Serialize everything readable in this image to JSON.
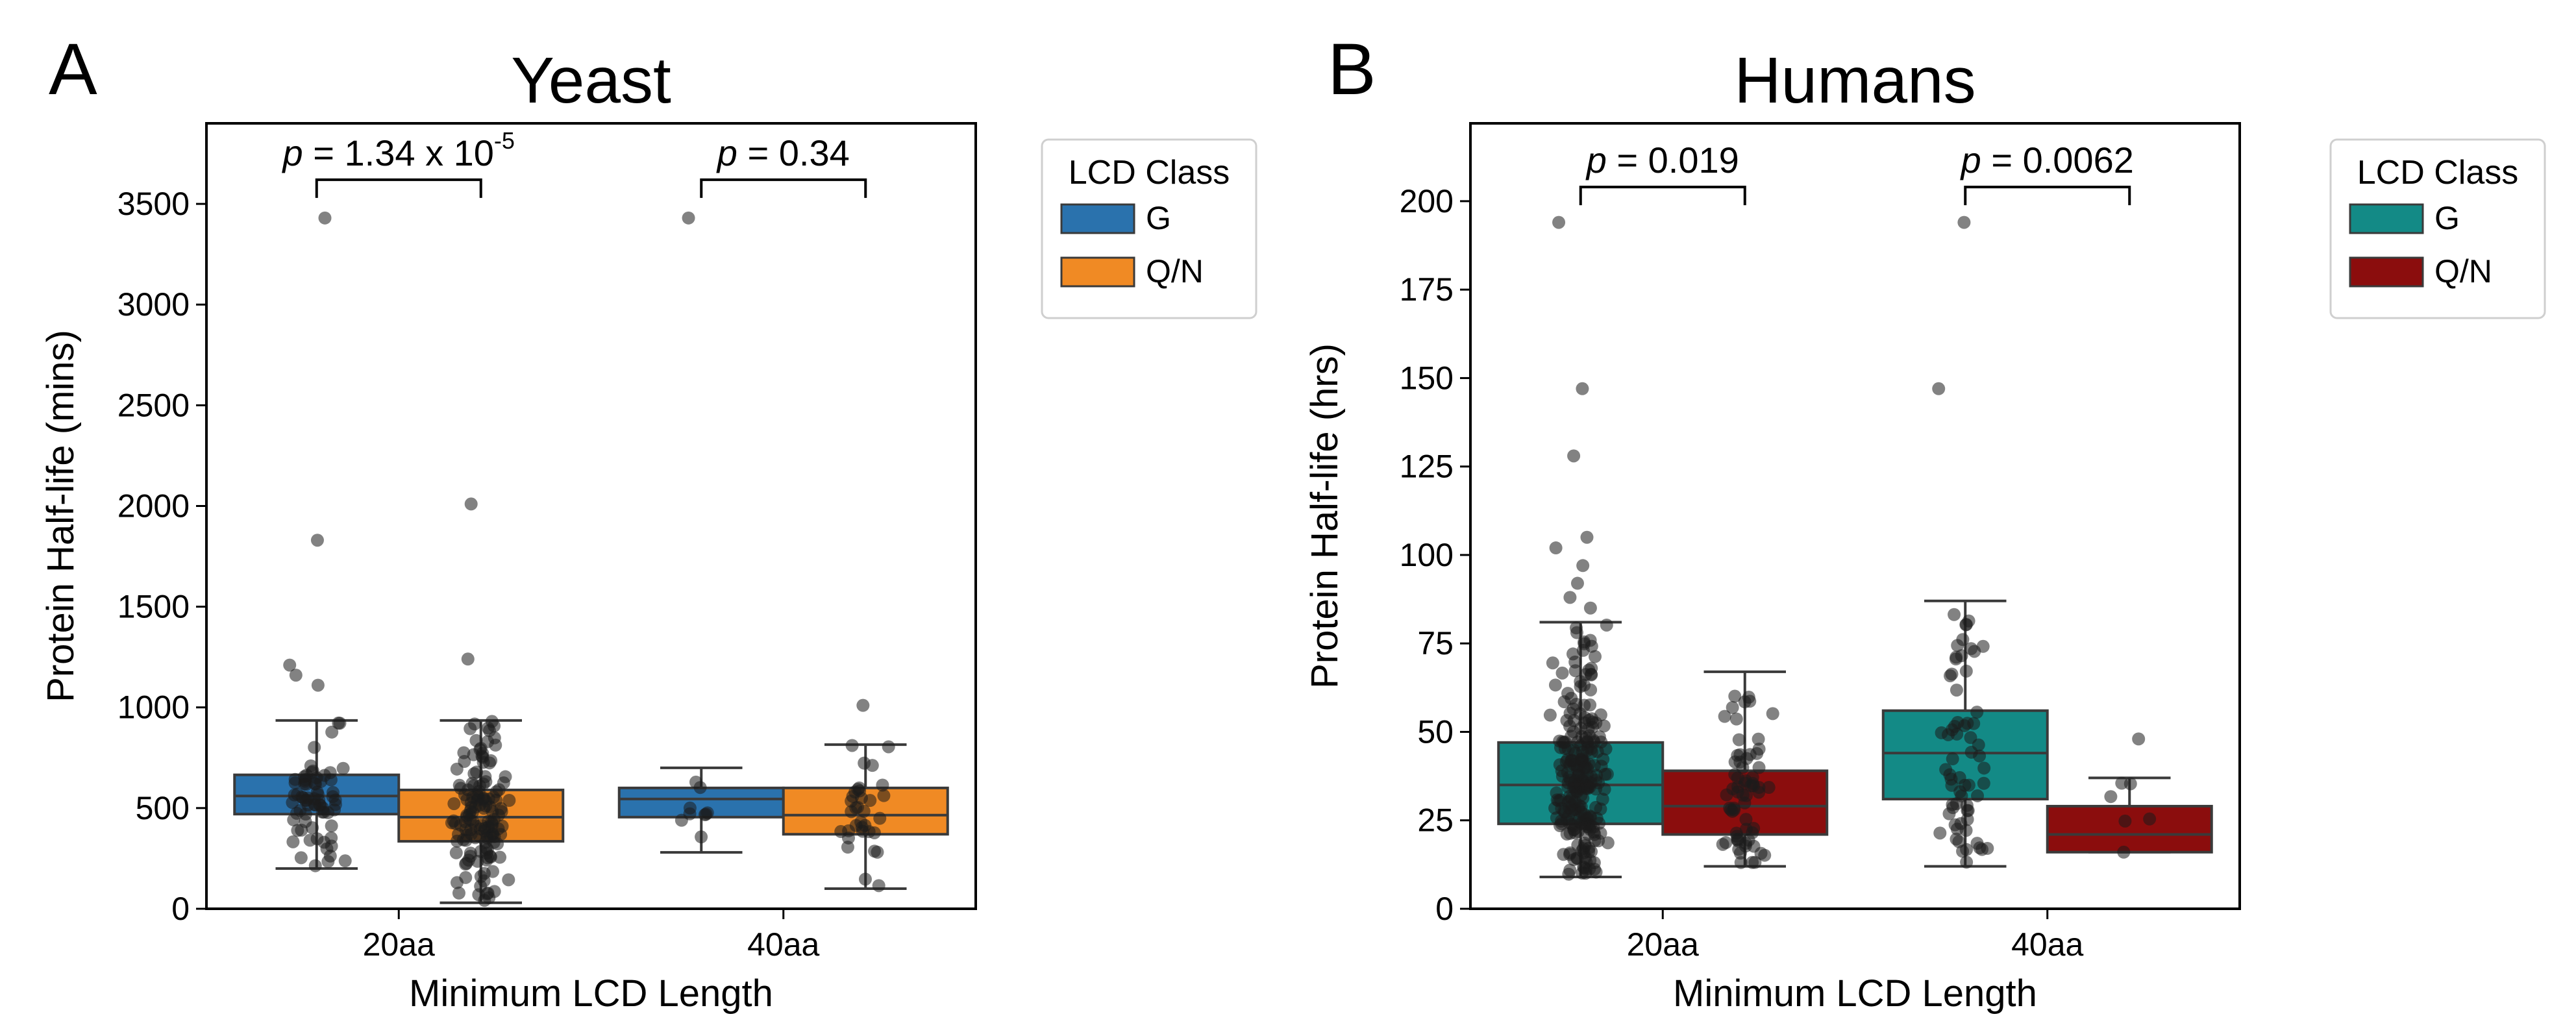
{
  "chart_data": [
    {
      "type": "box",
      "panel_label": "A",
      "title": "Yeast",
      "xlabel": "Minimum LCD Length",
      "ylabel": "Protein Half-life (mins)",
      "categories": [
        "20aa",
        "40aa"
      ],
      "ylim": [
        0,
        3900
      ],
      "yticks": [
        0,
        500,
        1000,
        1500,
        2000,
        2500,
        3000,
        3500
      ],
      "legend": {
        "title": "LCD Class",
        "entries": [
          "G",
          "Q/N"
        ],
        "placement": "outside-right"
      },
      "colors": {
        "G": "#2a72ad",
        "Q/N": "#f08a24"
      },
      "series": [
        {
          "name": "G",
          "boxes": [
            {
              "category": "20aa",
              "whislo": 200,
              "q1": 470,
              "med": 560,
              "q3": 665,
              "whishi": 935,
              "fliers": [
                3430,
                1830,
                1210,
                1160,
                1110
              ]
            },
            {
              "category": "40aa",
              "whislo": 280,
              "q1": 455,
              "med": 545,
              "q3": 600,
              "whishi": 700,
              "fliers": [
                3430
              ]
            }
          ]
        },
        {
          "name": "Q/N",
          "boxes": [
            {
              "category": "20aa",
              "whislo": 30,
              "q1": 335,
              "med": 455,
              "q3": 590,
              "whishi": 935,
              "fliers": [
                2010,
                1240
              ]
            },
            {
              "category": "40aa",
              "whislo": 100,
              "q1": 370,
              "med": 465,
              "q3": 600,
              "whishi": 815,
              "fliers": [
                1010
              ]
            }
          ]
        }
      ],
      "annotations": [
        {
          "category": "20aa",
          "p_label": "p",
          "p_text": " = 1.34 x 10",
          "p_exponent": "-5",
          "y": 3620
        },
        {
          "category": "40aa",
          "p_label": "p",
          "p_text": " = 0.34",
          "p_exponent": "",
          "y": 3620
        }
      ]
    },
    {
      "type": "box",
      "panel_label": "B",
      "title": "Humans",
      "xlabel": "Minimum LCD Length",
      "ylabel": "Protein Half-life (hrs)",
      "categories": [
        "20aa",
        "40aa"
      ],
      "ylim": [
        0,
        222
      ],
      "yticks": [
        0,
        25,
        50,
        75,
        100,
        125,
        150,
        175,
        200
      ],
      "legend": {
        "title": "LCD Class",
        "entries": [
          "G",
          "Q/N"
        ],
        "placement": "outside-right"
      },
      "colors": {
        "G": "#138a86",
        "Q/N": "#8b0d0d"
      },
      "series": [
        {
          "name": "G",
          "boxes": [
            {
              "category": "20aa",
              "whislo": 9,
              "q1": 24,
              "med": 35,
              "q3": 47,
              "whishi": 81,
              "fliers": [
                194,
                147,
                128,
                105,
                102,
                97,
                92,
                88,
                85
              ]
            },
            {
              "category": "40aa",
              "whislo": 12,
              "q1": 31,
              "med": 44,
              "q3": 56,
              "whishi": 87,
              "fliers": [
                194,
                147
              ]
            }
          ]
        },
        {
          "name": "Q/N",
          "boxes": [
            {
              "category": "20aa",
              "whislo": 12,
              "q1": 21,
              "med": 29,
              "q3": 39,
              "whishi": 67,
              "fliers": []
            },
            {
              "category": "40aa",
              "whislo": 16,
              "q1": 16,
              "med": 21,
              "q3": 29,
              "whishi": 37,
              "fliers": [
                48
              ]
            }
          ]
        }
      ],
      "annotations": [
        {
          "category": "20aa",
          "p_label": "p",
          "p_text": " = 0.019",
          "p_exponent": "",
          "y": 204
        },
        {
          "category": "40aa",
          "p_label": "p",
          "p_text": " = 0.0062",
          "p_exponent": "",
          "y": 204
        }
      ]
    }
  ]
}
